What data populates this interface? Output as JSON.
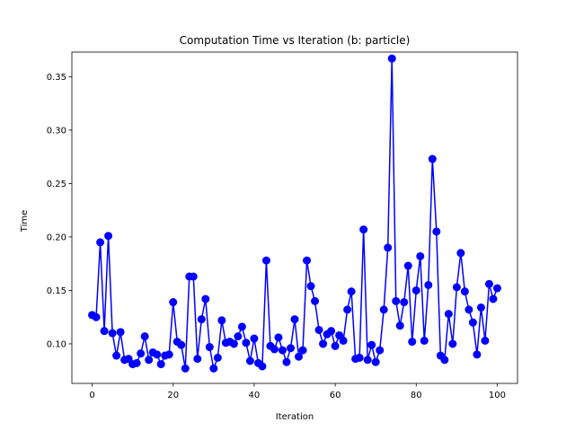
{
  "chart_data": {
    "type": "line",
    "title": "Computation Time vs Iteration (b: particle)",
    "xlabel": "Iteration",
    "ylabel": "Time",
    "xlim": [
      -5,
      105
    ],
    "ylim": [
      0.063,
      0.373
    ],
    "xticks": [
      0,
      20,
      40,
      60,
      80,
      100
    ],
    "yticks": [
      0.1,
      0.15,
      0.2,
      0.25,
      0.3,
      0.35
    ],
    "ytick_labels": [
      "0.10",
      "0.15",
      "0.20",
      "0.25",
      "0.30",
      "0.35"
    ],
    "grid": false,
    "legend": "none",
    "series": [
      {
        "color": "#0000ff",
        "marker": "circle",
        "x": [
          0,
          1,
          2,
          3,
          4,
          5,
          6,
          7,
          8,
          9,
          10,
          11,
          12,
          13,
          14,
          15,
          16,
          17,
          18,
          19,
          20,
          21,
          22,
          23,
          24,
          25,
          26,
          27,
          28,
          29,
          30,
          31,
          32,
          33,
          34,
          35,
          36,
          37,
          38,
          39,
          40,
          41,
          42,
          43,
          44,
          45,
          46,
          47,
          48,
          49,
          50,
          51,
          52,
          53,
          54,
          55,
          56,
          57,
          58,
          59,
          60,
          61,
          62,
          63,
          64,
          65,
          66,
          67,
          68,
          69,
          70,
          71,
          72,
          73,
          74,
          75,
          76,
          77,
          78,
          79,
          80,
          81,
          82,
          83,
          84,
          85,
          86,
          87,
          88,
          89,
          90,
          91,
          92,
          93,
          94,
          95,
          96,
          97,
          98,
          99,
          100
        ],
        "values": [
          0.127,
          0.125,
          0.195,
          0.112,
          0.201,
          0.11,
          0.089,
          0.111,
          0.085,
          0.086,
          0.081,
          0.082,
          0.091,
          0.107,
          0.085,
          0.092,
          0.09,
          0.081,
          0.089,
          0.09,
          0.139,
          0.102,
          0.099,
          0.077,
          0.163,
          0.163,
          0.086,
          0.123,
          0.142,
          0.097,
          0.077,
          0.087,
          0.122,
          0.101,
          0.102,
          0.1,
          0.107,
          0.116,
          0.101,
          0.084,
          0.105,
          0.082,
          0.079,
          0.178,
          0.098,
          0.095,
          0.106,
          0.094,
          0.083,
          0.096,
          0.123,
          0.088,
          0.094,
          0.178,
          0.154,
          0.14,
          0.113,
          0.1,
          0.109,
          0.112,
          0.098,
          0.108,
          0.103,
          0.132,
          0.149,
          0.086,
          0.087,
          0.207,
          0.085,
          0.099,
          0.083,
          0.094,
          0.132,
          0.19,
          0.367,
          0.14,
          0.117,
          0.139,
          0.173,
          0.102,
          0.15,
          0.182,
          0.103,
          0.155,
          0.273,
          0.205,
          0.089,
          0.085,
          0.128,
          0.1,
          0.153,
          0.185,
          0.149,
          0.132,
          0.12,
          0.09,
          0.134,
          0.103,
          0.156,
          0.142,
          0.152
        ]
      }
    ]
  }
}
